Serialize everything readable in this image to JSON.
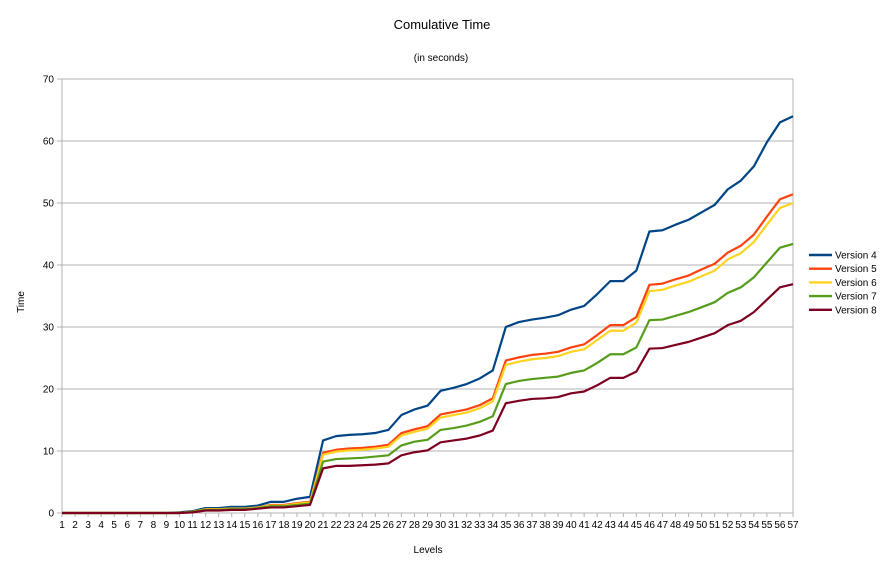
{
  "chart_data": {
    "type": "line",
    "title": "Comulative Time",
    "subtitle": "(in seconds)",
    "xlabel": "Levels",
    "ylabel": "Time",
    "ylim": [
      0,
      70
    ],
    "yticks": [
      0,
      10,
      20,
      30,
      40,
      50,
      60,
      70
    ],
    "grid": true,
    "legend_position": "right",
    "categories": [
      "1",
      "2",
      "3",
      "4",
      "5",
      "6",
      "7",
      "8",
      "9",
      "10",
      "11",
      "12",
      "13",
      "14",
      "15",
      "16",
      "17",
      "18",
      "19",
      "20",
      "21",
      "22",
      "23",
      "24",
      "25",
      "26",
      "27",
      "28",
      "29",
      "30",
      "31",
      "32",
      "33",
      "34",
      "35",
      "36",
      "37",
      "38",
      "39",
      "40",
      "41",
      "42",
      "43",
      "44",
      "45",
      "46",
      "47",
      "48",
      "49",
      "50",
      "51",
      "52",
      "53",
      "54",
      "55",
      "56",
      "57"
    ],
    "series": [
      {
        "name": "Version 4",
        "color": "#004586",
        "values": [
          0,
          0,
          0,
          0,
          0,
          0,
          0,
          0,
          0,
          0.1,
          0.3,
          0.8,
          0.8,
          1.0,
          1.0,
          1.2,
          1.8,
          1.8,
          2.3,
          2.6,
          11.7,
          12.4,
          12.6,
          12.7,
          12.9,
          13.4,
          15.8,
          16.7,
          17.3,
          19.7,
          20.2,
          20.8,
          21.7,
          23.0,
          30.0,
          30.8,
          31.2,
          31.5,
          31.9,
          32.8,
          33.4,
          35.3,
          37.4,
          37.4,
          39.1,
          45.4,
          45.6,
          46.5,
          47.3,
          48.5,
          49.7,
          52.2,
          53.6,
          55.9,
          59.8,
          63.0,
          64.0
        ]
      },
      {
        "name": "Version 5",
        "color": "#ff420e",
        "values": [
          0,
          0,
          0,
          0,
          0,
          0,
          0,
          0,
          0,
          0,
          0.2,
          0.6,
          0.6,
          0.7,
          0.7,
          0.9,
          1.3,
          1.3,
          1.6,
          1.8,
          9.7,
          10.2,
          10.4,
          10.5,
          10.7,
          11.0,
          12.9,
          13.5,
          14.0,
          15.9,
          16.3,
          16.7,
          17.4,
          18.5,
          24.6,
          25.1,
          25.5,
          25.7,
          26.0,
          26.7,
          27.2,
          28.7,
          30.3,
          30.3,
          31.6,
          36.8,
          37.0,
          37.7,
          38.3,
          39.3,
          40.2,
          42.0,
          43.1,
          44.9,
          47.8,
          50.6,
          51.4
        ]
      },
      {
        "name": "Version 6",
        "color": "#ffd320",
        "values": [
          0,
          0,
          0,
          0,
          0,
          0,
          0,
          0,
          0,
          0,
          0.2,
          0.6,
          0.6,
          0.7,
          0.7,
          0.9,
          1.2,
          1.2,
          1.5,
          1.7,
          9.4,
          9.9,
          10.1,
          10.2,
          10.4,
          10.7,
          12.5,
          13.1,
          13.6,
          15.4,
          15.8,
          16.2,
          16.9,
          18.0,
          23.9,
          24.4,
          24.8,
          25.0,
          25.3,
          26.0,
          26.4,
          27.9,
          29.4,
          29.4,
          30.7,
          35.8,
          36.0,
          36.7,
          37.3,
          38.2,
          39.1,
          40.9,
          41.9,
          43.7,
          46.5,
          49.2,
          50.0
        ]
      },
      {
        "name": "Version 7",
        "color": "#579d1c",
        "values": [
          0,
          0,
          0,
          0,
          0,
          0,
          0,
          0,
          0,
          0,
          0.2,
          0.5,
          0.5,
          0.6,
          0.6,
          0.8,
          1.1,
          1.1,
          1.3,
          1.5,
          8.3,
          8.7,
          8.8,
          8.9,
          9.1,
          9.3,
          10.9,
          11.5,
          11.8,
          13.4,
          13.7,
          14.1,
          14.7,
          15.6,
          20.8,
          21.3,
          21.6,
          21.8,
          22.0,
          22.6,
          23.0,
          24.2,
          25.6,
          25.6,
          26.7,
          31.1,
          31.2,
          31.8,
          32.4,
          33.2,
          34.0,
          35.5,
          36.4,
          38.0,
          40.4,
          42.8,
          43.4
        ]
      },
      {
        "name": "Version 8",
        "color": "#7e0021",
        "values": [
          0,
          0,
          0,
          0,
          0,
          0,
          0,
          0,
          0,
          0,
          0.1,
          0.4,
          0.4,
          0.5,
          0.5,
          0.7,
          0.9,
          0.9,
          1.1,
          1.3,
          7.2,
          7.6,
          7.6,
          7.7,
          7.8,
          8.0,
          9.3,
          9.8,
          10.1,
          11.4,
          11.7,
          12.0,
          12.5,
          13.3,
          17.7,
          18.1,
          18.4,
          18.5,
          18.7,
          19.3,
          19.6,
          20.6,
          21.8,
          21.8,
          22.8,
          26.5,
          26.6,
          27.1,
          27.6,
          28.3,
          29.0,
          30.3,
          31.0,
          32.4,
          34.4,
          36.4,
          36.9
        ]
      }
    ]
  }
}
